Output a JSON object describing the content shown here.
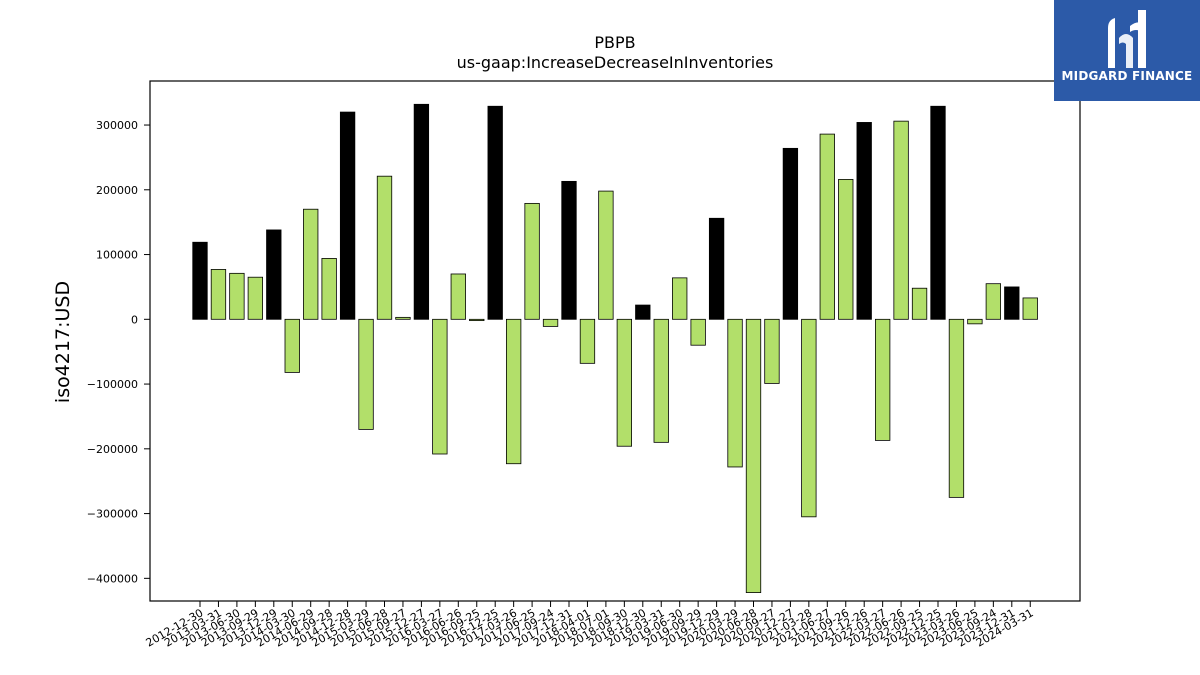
{
  "chart_data": {
    "type": "bar",
    "title": "PBPB",
    "subtitle": "us-gaap:IncreaseDecreaseInInventories",
    "xlabel": "",
    "ylabel": "iso4217:USD",
    "ylim": [
      -435000,
      368000
    ],
    "yticks": [
      -400000,
      -300000,
      -200000,
      -100000,
      0,
      100000,
      200000,
      300000
    ],
    "grid": false,
    "colors": {
      "annual": "#000000",
      "quarterly": "#b2df6a",
      "edge": "#000000"
    },
    "categories": [
      "2012-12-30",
      "2013-03-31",
      "2013-06-30",
      "2013-09-29",
      "2013-12-29",
      "2014-03-30",
      "2014-06-29",
      "2014-09-28",
      "2014-12-28",
      "2015-03-29",
      "2015-06-28",
      "2015-09-27",
      "2015-12-27",
      "2016-03-27",
      "2016-06-26",
      "2016-09-25",
      "2016-12-25",
      "2017-03-26",
      "2017-06-25",
      "2017-09-24",
      "2017-12-31",
      "2018-04-01",
      "2018-07-01",
      "2018-09-30",
      "2018-12-30",
      "2019-03-31",
      "2019-06-30",
      "2019-09-29",
      "2019-12-29",
      "2020-03-29",
      "2020-06-28",
      "2020-09-27",
      "2020-12-27",
      "2021-03-28",
      "2021-06-27",
      "2021-09-26",
      "2021-12-26",
      "2022-03-27",
      "2022-06-26",
      "2022-09-25",
      "2022-12-25",
      "2023-03-26",
      "2023-06-25",
      "2023-09-24",
      "2023-12-31",
      "2024-03-31"
    ],
    "values": [
      119000,
      77000,
      71000,
      65000,
      138000,
      -82000,
      170000,
      94000,
      320000,
      -170000,
      221000,
      3000,
      332000,
      -208000,
      70000,
      -2000,
      329000,
      -223000,
      179000,
      -11000,
      213000,
      -68000,
      198000,
      -196000,
      22000,
      -190000,
      64000,
      -40000,
      156000,
      -228000,
      -422000,
      -99000,
      264000,
      -305000,
      286000,
      216000,
      304000,
      -187000,
      306000,
      48000,
      329000,
      -275000,
      -7000,
      55000,
      50000,
      33000
    ],
    "bar_kinds": [
      "annual",
      "quarterly",
      "quarterly",
      "quarterly",
      "annual",
      "quarterly",
      "quarterly",
      "quarterly",
      "annual",
      "quarterly",
      "quarterly",
      "quarterly",
      "annual",
      "quarterly",
      "quarterly",
      "quarterly",
      "annual",
      "quarterly",
      "quarterly",
      "quarterly",
      "annual",
      "quarterly",
      "quarterly",
      "quarterly",
      "annual",
      "quarterly",
      "quarterly",
      "quarterly",
      "annual",
      "quarterly",
      "quarterly",
      "quarterly",
      "annual",
      "quarterly",
      "quarterly",
      "quarterly",
      "annual",
      "quarterly",
      "quarterly",
      "quarterly",
      "annual",
      "quarterly",
      "quarterly",
      "quarterly",
      "annual",
      "quarterly"
    ]
  },
  "logo": {
    "text": "MIDGARD FINANCE",
    "background": "#2c5aa8"
  }
}
